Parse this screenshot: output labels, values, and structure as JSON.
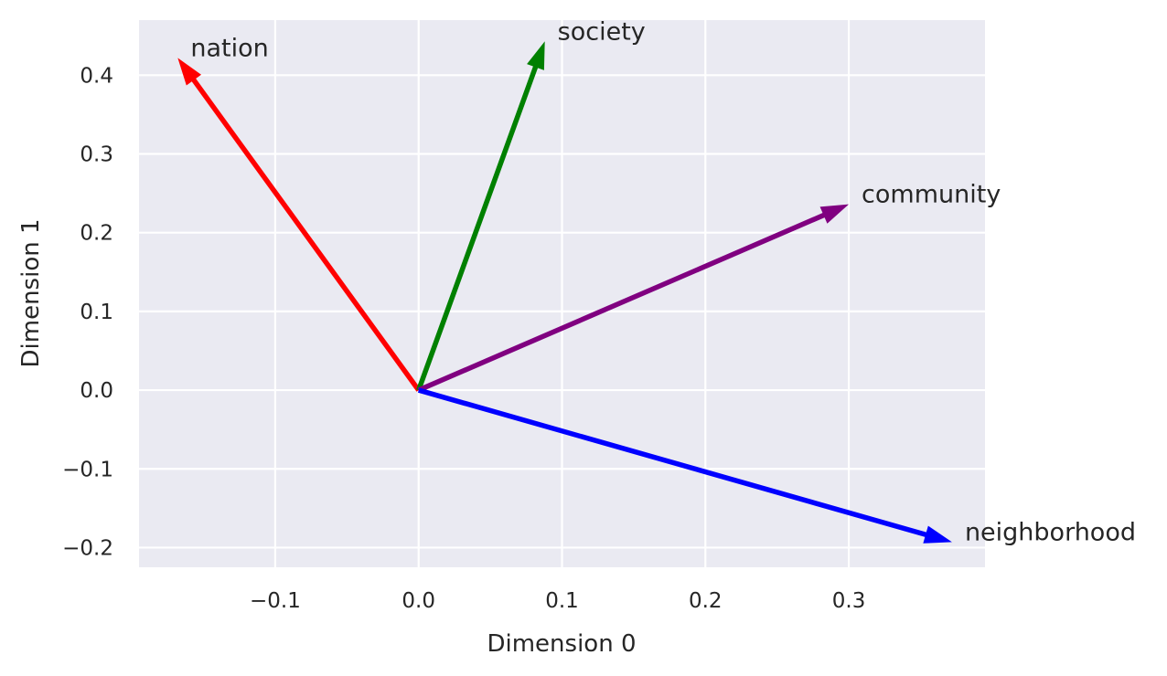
{
  "chart_data": {
    "type": "vector",
    "title": "",
    "xlabel": "Dimension 0",
    "ylabel": "Dimension 1",
    "xlim": [
      -0.195,
      0.395
    ],
    "ylim": [
      -0.225,
      0.47
    ],
    "xticks": [
      -0.1,
      0.0,
      0.1,
      0.2,
      0.3
    ],
    "xtick_labels": [
      "−0.1",
      "0.0",
      "0.1",
      "0.2",
      "0.3"
    ],
    "yticks": [
      -0.2,
      -0.1,
      0.0,
      0.1,
      0.2,
      0.3,
      0.4
    ],
    "ytick_labels": [
      "−0.2",
      "−0.1",
      "0.0",
      "0.1",
      "0.2",
      "0.3",
      "0.4"
    ],
    "grid": true,
    "background": "#eaeaf2",
    "vectors": [
      {
        "label": "nation",
        "x": -0.168,
        "y": 0.422,
        "color": "#ff0000"
      },
      {
        "label": "society",
        "x": 0.088,
        "y": 0.443,
        "color": "#008000"
      },
      {
        "label": "community",
        "x": 0.3,
        "y": 0.236,
        "color": "#800080"
      },
      {
        "label": "neighborhood",
        "x": 0.372,
        "y": -0.193,
        "color": "#0000ff"
      }
    ]
  }
}
